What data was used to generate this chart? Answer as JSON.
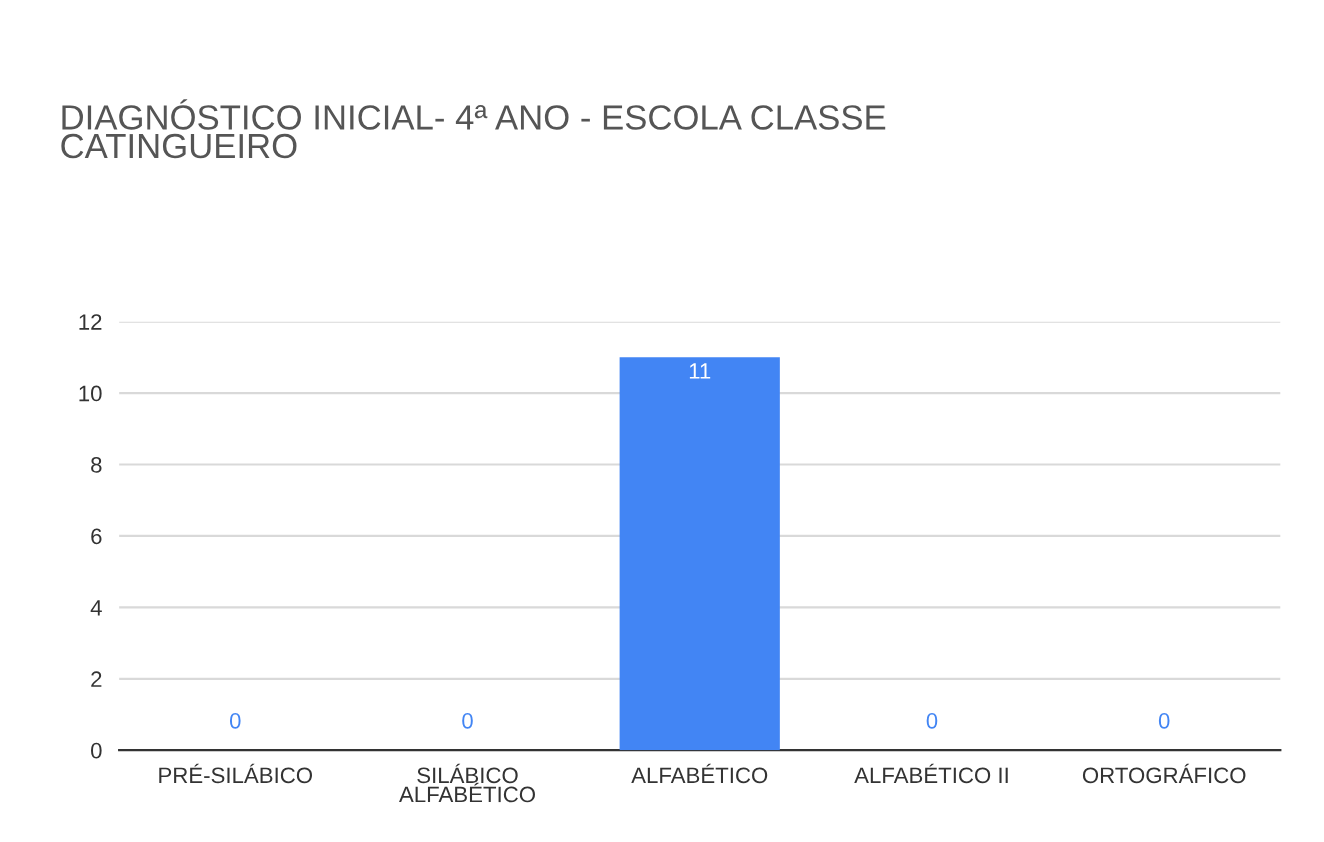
{
  "chart_data": {
    "type": "bar",
    "title": "DIAGNÓSTICO INICIAL- 4ª ANO - ESCOLA CLASSE\nCATINGUEIRO",
    "categories": [
      "PRÉ-SILÁBICO",
      "SILÁBICO\nALFABÉTICO",
      "ALFABÉTICO",
      "ALFABÉTICO II",
      "ORTOGRÁFICO"
    ],
    "values": [
      0,
      0,
      11,
      0,
      0
    ],
    "color": "#4285f4",
    "ylim": [
      0,
      12
    ],
    "yticks": [
      0,
      2,
      4,
      6,
      8,
      10,
      12
    ],
    "grid": "y",
    "legend": false,
    "data_labels": true
  }
}
